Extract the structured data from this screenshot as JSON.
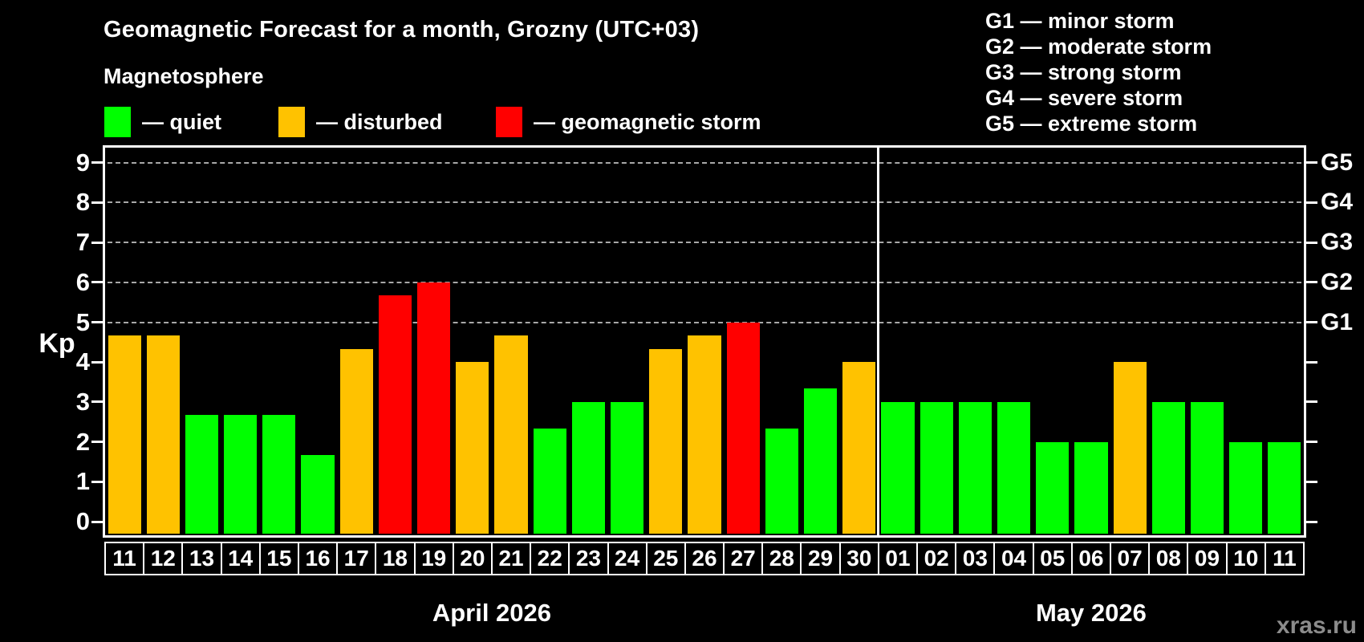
{
  "header": {
    "title": "Geomagnetic Forecast for a month, Grozny (UTC+03)",
    "subtitle": "Magnetosphere"
  },
  "legend": {
    "items": [
      {
        "name": "quiet",
        "label": "— quiet",
        "color": "#00FF00"
      },
      {
        "name": "disturbed",
        "label": "— disturbed",
        "color": "#FFC200"
      },
      {
        "name": "storm",
        "label": "— geomagnetic storm",
        "color": "#FF0000"
      }
    ]
  },
  "g_scale_legend": {
    "lines": [
      "G1 — minor storm",
      "G2 — moderate storm",
      "G3 — strong storm",
      "G4 — severe storm",
      "G5 — extreme storm"
    ]
  },
  "watermark": "xras.ru",
  "chart_data": {
    "type": "bar",
    "title": "Geomagnetic Forecast for a month, Grozny (UTC+03)",
    "ylabel": "Kp",
    "ylim": [
      0,
      9.35
    ],
    "yticks": [
      0,
      1,
      2,
      3,
      4,
      5,
      6,
      7,
      8,
      9
    ],
    "grid_levels_kp": [
      5,
      6,
      7,
      8,
      9
    ],
    "grid": "dashed-horizontal-at-storm-levels",
    "legend_position": "top-left",
    "right_axis_labels": [
      {
        "label": "G1",
        "kp": 5
      },
      {
        "label": "G2",
        "kp": 6
      },
      {
        "label": "G3",
        "kp": 7
      },
      {
        "label": "G4",
        "kp": 8
      },
      {
        "label": "G5",
        "kp": 9
      }
    ],
    "months": [
      {
        "label": "April 2026",
        "start_index": 0,
        "count": 20
      },
      {
        "label": "May 2026",
        "start_index": 20,
        "count": 11
      }
    ],
    "categories": [
      "11",
      "12",
      "13",
      "14",
      "15",
      "16",
      "17",
      "18",
      "19",
      "20",
      "21",
      "22",
      "23",
      "24",
      "25",
      "26",
      "27",
      "28",
      "29",
      "30",
      "01",
      "02",
      "03",
      "04",
      "05",
      "06",
      "07",
      "08",
      "09",
      "10",
      "11"
    ],
    "values": [
      4.67,
      4.67,
      2.67,
      2.67,
      2.67,
      1.67,
      4.33,
      5.67,
      6.0,
      4.0,
      4.67,
      2.33,
      3.0,
      3.0,
      4.33,
      4.67,
      5.0,
      2.33,
      3.33,
      4.0,
      3.0,
      3.0,
      3.0,
      3.0,
      2.0,
      2.0,
      4.0,
      3.0,
      3.0,
      2.0,
      2.0
    ],
    "statuses": [
      "disturbed",
      "disturbed",
      "quiet",
      "quiet",
      "quiet",
      "quiet",
      "disturbed",
      "storm",
      "storm",
      "disturbed",
      "disturbed",
      "quiet",
      "quiet",
      "quiet",
      "disturbed",
      "disturbed",
      "storm",
      "quiet",
      "quiet",
      "disturbed",
      "quiet",
      "quiet",
      "quiet",
      "quiet",
      "quiet",
      "quiet",
      "disturbed",
      "quiet",
      "quiet",
      "quiet",
      "quiet"
    ],
    "status_colors": {
      "quiet": "#00FF00",
      "disturbed": "#FFC200",
      "storm": "#FF0000"
    }
  }
}
